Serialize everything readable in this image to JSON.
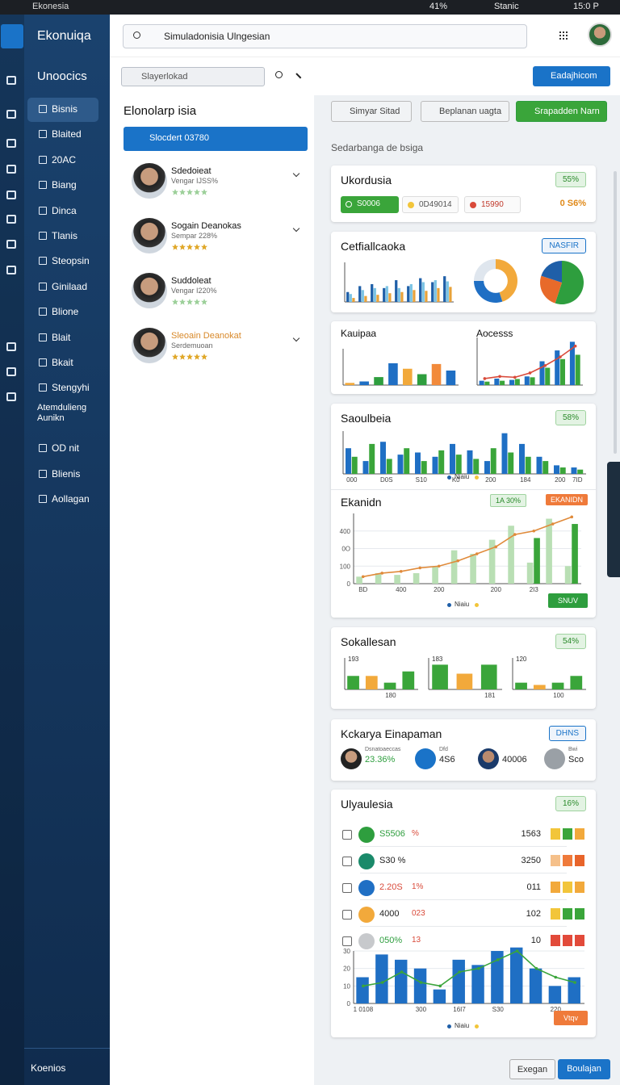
{
  "status_bar": {
    "app": "Ekonesia",
    "battery": "41%",
    "carrier": "Stanic",
    "time": "15:0 P"
  },
  "sidebar": {
    "brand": "Ekonuiqa",
    "section": "Unoocics",
    "items": [
      "Bisnis",
      "Blaited",
      "20AC",
      "Biang",
      "Dinca",
      "Tlanis",
      "Steopsin",
      "Ginilaad",
      "Blione",
      "Blait",
      "Bkait",
      "Stengyhi",
      "Atemdulieng Aunikn",
      "OD nit",
      "Blienis",
      "Aollagan"
    ],
    "footer": "Koenios"
  },
  "header": {
    "search": "Simuladonisia Ulngesian"
  },
  "toolbar": {
    "select": "Slayerlokad",
    "action": "Eadajhicom"
  },
  "people_panel": {
    "title": "Elonolarp isia",
    "button": "Slocdert 03780",
    "people": [
      {
        "name": "Sdedoieat",
        "subtitle": "Vengar IJSS%"
      },
      {
        "name": "Sogain Deanokas",
        "subtitle": "Sempar 228%"
      },
      {
        "name": "Suddoleat",
        "subtitle": "Vengar I220%"
      },
      {
        "name": "Sleoain Deanokat",
        "subtitle": "Serdemuoan"
      }
    ]
  },
  "filters": [
    "Simyar Sitad",
    "Beplanan uagta",
    "Srapadden Narn"
  ],
  "section_label": "Sedarbanga de bsiga",
  "cards": [
    {
      "title": "Ukordusia",
      "badge": "55%",
      "chips": [
        "S0006",
        "0D49014",
        "15990"
      ],
      "total": "0 S6%"
    },
    {
      "title": "Cetfiallcaoka",
      "badge": "NASFIR",
      "charts": [
        {
          "type": "line",
          "ylim": [
            0,
            100
          ],
          "series": [
            {
              "color": "#1f5fa8",
              "values": [
                25,
                40,
                45,
                35,
                55,
                40,
                60,
                50,
                65
              ]
            },
            {
              "color": "#7cc4e4",
              "values": [
                20,
                30,
                35,
                40,
                35,
                45,
                50,
                55,
                52
              ]
            },
            {
              "color": "#e8a23a",
              "values": [
                10,
                15,
                18,
                22,
                25,
                30,
                28,
                35,
                38
              ]
            }
          ]
        },
        {
          "type": "pie",
          "donut": true,
          "values": [
            45,
            30,
            25
          ],
          "colors": [
            "#f2a93b",
            "#1f6fc4",
            "#dfe6ee"
          ]
        },
        {
          "type": "pie",
          "donut": false,
          "values": [
            55,
            25,
            20
          ],
          "colors": [
            "#2e9e3e",
            "#e86a2a",
            "#1f5fa8"
          ]
        }
      ]
    },
    {
      "titles": [
        "Kauipaa",
        "Aocesss"
      ],
      "charts": [
        {
          "type": "bar",
          "ylim": [
            0,
            100
          ],
          "series": [
            {
              "values": [
                6,
                10,
                22,
                60,
                45,
                30,
                58,
                40
              ],
              "colors": [
                "#f2a93b",
                "#1f6fc4",
                "#2e9e3e",
                "#1f6fc4",
                "#f2a93b",
                "#2e9e3e",
                "#f28a3b",
                "#1f6fc4"
              ]
            }
          ]
        },
        {
          "type": "bar",
          "ylim": [
            0,
            110
          ],
          "series": [
            {
              "color": "#1f6fc4",
              "values": [
                10,
                15,
                12,
                20,
                55,
                80,
                100
              ]
            },
            {
              "color": "#3aa53a",
              "values": [
                8,
                10,
                14,
                18,
                40,
                60,
                70
              ]
            },
            {
              "color": "#d94a3a",
              "kind": "line",
              "values": [
                15,
                20,
                18,
                28,
                45,
                65,
                90
              ]
            }
          ]
        }
      ]
    },
    {
      "title": "Saoulbeia",
      "badge": "58%",
      "legend": "Niaiu",
      "chart": {
        "type": "bar",
        "ylim": [
          0,
          100
        ],
        "categories": [
          "000",
          null,
          "D0S",
          null,
          "S10",
          null,
          "K0",
          null,
          "200",
          null,
          "184",
          null,
          "200",
          "7ID"
        ],
        "series": [
          {
            "color": "#1f6fc4",
            "values": [
              60,
              30,
              75,
              45,
              50,
              40,
              70,
              55,
              30,
              95,
              70,
              40,
              20,
              15
            ]
          },
          {
            "color": "#3aa53a",
            "values": [
              40,
              70,
              35,
              60,
              30,
              55,
              45,
              35,
              60,
              50,
              40,
              30,
              15,
              10
            ]
          }
        ]
      }
    },
    {
      "title": "Ekanidn",
      "badges": [
        "1A 30%",
        "EKANIDN"
      ],
      "legend": "Niaiu",
      "button": "SNUV",
      "chart": {
        "type": "bar",
        "ylim": [
          0,
          400
        ],
        "yticks": [
          0,
          100,
          {
            "value": 200,
            "label": "0O"
          },
          {
            "value": 300,
            "label": "400"
          }
        ],
        "categories": [
          "BD",
          null,
          "400",
          null,
          "200",
          null,
          null,
          "200",
          null,
          "2I3",
          null,
          null
        ],
        "series": [
          {
            "color": "#b9dfb4",
            "values": [
              40,
              60,
              50,
              60,
              100,
              190,
              170,
              250,
              330,
              120,
              370,
              100
            ]
          },
          {
            "color": "#3aa53a",
            "values": [
              null,
              null,
              null,
              null,
              null,
              null,
              null,
              null,
              null,
              260,
              null,
              340
            ]
          },
          {
            "color": "#e08a3a",
            "kind": "line",
            "values": [
              40,
              60,
              70,
              90,
              100,
              130,
              170,
              210,
              280,
              300,
              340,
              380
            ]
          }
        ]
      }
    },
    {
      "title": "Sokallesan",
      "badge": "54%",
      "charts": [
        {
          "type": "bar",
          "note": "193",
          "ylim": [
            0,
            70
          ],
          "categories": [
            null,
            null,
            "180",
            null
          ],
          "series": [
            {
              "values": [
                30,
                30,
                15,
                40
              ],
              "colors": [
                "#3aa53a",
                "#f2a93b",
                "#3aa53a",
                "#3aa53a"
              ]
            }
          ]
        },
        {
          "type": "bar",
          "note": "183",
          "ylim": [
            0,
            70
          ],
          "categories": [
            null,
            null,
            "181"
          ],
          "series": [
            {
              "values": [
                55,
                35,
                55
              ],
              "colors": [
                "#3aa53a",
                "#f2a93b",
                "#3aa53a"
              ]
            }
          ]
        },
        {
          "type": "bar",
          "note": "120",
          "ylim": [
            0,
            70
          ],
          "categories": [
            null,
            null,
            "100",
            null
          ],
          "series": [
            {
              "values": [
                15,
                10,
                15,
                30
              ],
              "colors": [
                "#3aa53a",
                "#f2a93b",
                "#3aa53a",
                "#3aa53a"
              ]
            }
          ]
        }
      ]
    },
    {
      "title": "Kckarya Einapaman",
      "badge": "DHNS",
      "stats": [
        {
          "label": "Dsnatoaeccas",
          "value": "23.36%"
        },
        {
          "label": "Dfd",
          "value": "4S6"
        },
        {
          "label": "",
          "value": "40006"
        },
        {
          "label": "Bwi",
          "value": "Sco"
        }
      ]
    },
    {
      "title": "Ulyaulesia",
      "badge": "16%",
      "legend": "Niaiu",
      "button": "Vtqv",
      "rows": [
        {
          "value": "S5506",
          "note": "%",
          "amount": "1563"
        },
        {
          "value": "S30 %",
          "note": "",
          "amount": "3250"
        },
        {
          "value": "2.20S",
          "note": "1%",
          "amount": "011"
        },
        {
          "value": "4000",
          "note": "023",
          "amount": "102"
        },
        {
          "value": "050%",
          "note": "13",
          "amount": "10"
        }
      ],
      "chart": {
        "type": "bar",
        "ylim": [
          0,
          30
        ],
        "yticks": [
          0,
          10,
          20,
          30
        ],
        "categories": [
          "1 0108",
          null,
          null,
          "300",
          null,
          "16I7",
          null,
          "S30",
          null,
          null,
          "220",
          null
        ],
        "series": [
          {
            "color": "#1f6fc4",
            "values": [
              15,
              28,
              25,
              20,
              8,
              25,
              22,
              30,
              32,
              20,
              10,
              15
            ]
          },
          {
            "color": "#3aa53a",
            "kind": "line",
            "values": [
              10,
              12,
              18,
              12,
              10,
              18,
              20,
              25,
              30,
              20,
              15,
              12
            ]
          }
        ]
      }
    }
  ],
  "footer_buttons": [
    "Exegan",
    "Boulajan"
  ]
}
